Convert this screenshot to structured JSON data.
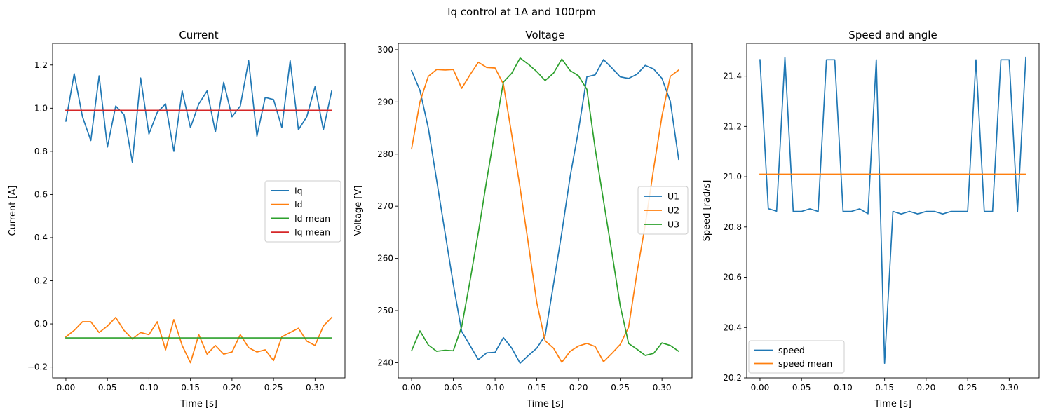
{
  "figure": {
    "suptitle": "Iq control at 1A and 100rpm"
  },
  "colors": {
    "c0": "#1f77b4",
    "c1": "#ff7f0e",
    "c2": "#2ca02c",
    "c3": "#d62728"
  },
  "chart_data": [
    {
      "type": "line",
      "title": "Current",
      "xlabel": "Time [s]",
      "ylabel": "Current [A]",
      "xlim": [
        -0.016,
        0.336
      ],
      "ylim": [
        -0.25,
        1.3
      ],
      "xticks": [
        0.0,
        0.05,
        0.1,
        0.15,
        0.2,
        0.25,
        0.3
      ],
      "xtick_labels": [
        "0.00",
        "0.05",
        "0.10",
        "0.15",
        "0.20",
        "0.25",
        "0.30"
      ],
      "yticks": [
        -0.2,
        0.0,
        0.2,
        0.4,
        0.6,
        0.8,
        1.0,
        1.2
      ],
      "ytick_labels": [
        "−0.2",
        "0.0",
        "0.2",
        "0.4",
        "0.6",
        "0.8",
        "1.0",
        "1.2"
      ],
      "legend_position": "center-right",
      "x": [
        0.0,
        0.01,
        0.02,
        0.03,
        0.04,
        0.05,
        0.06,
        0.07,
        0.08,
        0.09,
        0.1,
        0.11,
        0.12,
        0.13,
        0.14,
        0.15,
        0.16,
        0.17,
        0.18,
        0.19,
        0.2,
        0.21,
        0.22,
        0.23,
        0.24,
        0.25,
        0.26,
        0.27,
        0.28,
        0.29,
        0.3,
        0.31,
        0.32
      ],
      "series": [
        {
          "name": "Iq",
          "color": "#1f77b4",
          "values": [
            0.94,
            1.16,
            0.96,
            0.85,
            1.15,
            0.82,
            1.01,
            0.97,
            0.75,
            1.14,
            0.88,
            0.98,
            1.02,
            0.8,
            1.08,
            0.91,
            1.02,
            1.08,
            0.89,
            1.12,
            0.96,
            1.01,
            1.22,
            0.87,
            1.05,
            1.04,
            0.91,
            1.22,
            0.9,
            0.96,
            1.1,
            0.9,
            1.08
          ]
        },
        {
          "name": "Id",
          "color": "#ff7f0e",
          "values": [
            -0.06,
            -0.03,
            0.01,
            0.01,
            -0.04,
            -0.01,
            0.03,
            -0.03,
            -0.07,
            -0.04,
            -0.05,
            0.01,
            -0.12,
            0.02,
            -0.1,
            -0.18,
            -0.05,
            -0.14,
            -0.1,
            -0.14,
            -0.13,
            -0.05,
            -0.11,
            -0.13,
            -0.12,
            -0.17,
            -0.06,
            -0.04,
            -0.02,
            -0.08,
            -0.1,
            -0.01,
            0.03
          ]
        },
        {
          "name": "Id mean",
          "color": "#2ca02c",
          "values": [
            -0.065,
            -0.065
          ],
          "x": [
            0.0,
            0.32
          ]
        },
        {
          "name": "Iq mean",
          "color": "#d62728",
          "values": [
            0.99,
            0.99
          ],
          "x": [
            0.0,
            0.32
          ]
        }
      ]
    },
    {
      "type": "line",
      "title": "Voltage",
      "xlabel": "Time [s]",
      "ylabel": "Voltage [V]",
      "xlim": [
        -0.016,
        0.336
      ],
      "ylim": [
        237.1,
        301.2
      ],
      "xticks": [
        0.0,
        0.05,
        0.1,
        0.15,
        0.2,
        0.25,
        0.3
      ],
      "xtick_labels": [
        "0.00",
        "0.05",
        "0.10",
        "0.15",
        "0.20",
        "0.25",
        "0.30"
      ],
      "yticks": [
        240,
        250,
        260,
        270,
        280,
        290,
        300
      ],
      "ytick_labels": [
        "240",
        "250",
        "260",
        "270",
        "280",
        "290",
        "300"
      ],
      "legend_position": "center-right",
      "x": [
        0.0,
        0.01,
        0.02,
        0.03,
        0.04,
        0.05,
        0.06,
        0.07,
        0.08,
        0.09,
        0.1,
        0.11,
        0.12,
        0.13,
        0.14,
        0.15,
        0.16,
        0.17,
        0.18,
        0.19,
        0.2,
        0.21,
        0.22,
        0.23,
        0.24,
        0.25,
        0.26,
        0.27,
        0.28,
        0.29,
        0.3,
        0.31,
        0.32
      ],
      "series": [
        {
          "name": "U1",
          "color": "#1f77b4",
          "values": [
            296.0,
            292.2,
            285.0,
            275.0,
            265.0,
            255.0,
            246.0,
            243.3,
            240.6,
            241.9,
            242.0,
            244.8,
            242.8,
            239.9,
            241.4,
            242.8,
            245.2,
            255.0,
            265.0,
            275.7,
            284.6,
            294.8,
            295.2,
            298.1,
            296.5,
            294.8,
            294.5,
            295.3,
            297.0,
            296.3,
            294.5,
            290.1,
            279.0
          ]
        },
        {
          "name": "U2",
          "color": "#ff7f0e",
          "values": [
            281.0,
            290.0,
            294.9,
            296.2,
            296.1,
            296.2,
            292.6,
            295.2,
            297.6,
            296.6,
            296.5,
            293.4,
            283.7,
            273.5,
            262.7,
            251.5,
            244.2,
            242.8,
            240.1,
            242.2,
            243.2,
            243.7,
            243.1,
            240.2,
            241.8,
            243.5,
            246.8,
            257.2,
            266.5,
            277.2,
            287.3,
            294.9,
            296.1
          ]
        },
        {
          "name": "U3",
          "color": "#2ca02c",
          "values": [
            242.3,
            246.1,
            243.4,
            242.2,
            242.4,
            242.3,
            246.9,
            255.7,
            265.0,
            275.0,
            284.5,
            293.8,
            295.5,
            298.4,
            297.2,
            295.8,
            294.1,
            295.5,
            298.2,
            296.0,
            295.0,
            292.4,
            281.0,
            271.0,
            261.1,
            250.9,
            243.7,
            242.6,
            241.4,
            241.8,
            243.8,
            243.3,
            242.2
          ]
        }
      ]
    },
    {
      "type": "line",
      "title": "Speed and angle",
      "xlabel": "Time [s]",
      "ylabel": "Speed [rad/s]",
      "xlim": [
        -0.016,
        0.336
      ],
      "ylim": [
        20.2,
        21.53
      ],
      "xticks": [
        0.0,
        0.05,
        0.1,
        0.15,
        0.2,
        0.25,
        0.3
      ],
      "xtick_labels": [
        "0.00",
        "0.05",
        "0.10",
        "0.15",
        "0.20",
        "0.25",
        "0.30"
      ],
      "yticks": [
        20.2,
        20.4,
        20.6,
        20.8,
        21.0,
        21.2,
        21.4
      ],
      "ytick_labels": [
        "20.2",
        "20.4",
        "20.6",
        "20.8",
        "21.0",
        "21.2",
        "21.4"
      ],
      "legend_position": "lower-left",
      "x": [
        0.0,
        0.01,
        0.02,
        0.03,
        0.04,
        0.05,
        0.06,
        0.07,
        0.08,
        0.09,
        0.1,
        0.11,
        0.12,
        0.13,
        0.14,
        0.15,
        0.16,
        0.17,
        0.18,
        0.19,
        0.2,
        0.21,
        0.22,
        0.23,
        0.24,
        0.25,
        0.26,
        0.27,
        0.28,
        0.29,
        0.3,
        0.31,
        0.32
      ],
      "series": [
        {
          "name": "speed",
          "color": "#1f77b4",
          "values": [
            21.465,
            20.873,
            20.863,
            21.475,
            20.862,
            20.862,
            20.872,
            20.862,
            21.465,
            21.465,
            20.862,
            20.862,
            20.872,
            20.853,
            21.465,
            20.258,
            20.862,
            20.852,
            20.862,
            20.852,
            20.862,
            20.862,
            20.852,
            20.862,
            20.862,
            20.862,
            21.465,
            20.862,
            20.862,
            21.465,
            21.465,
            20.862,
            21.475
          ]
        },
        {
          "name": "speed mean",
          "color": "#ff7f0e",
          "values": [
            21.01,
            21.01
          ],
          "x": [
            0.0,
            0.32
          ]
        }
      ]
    }
  ]
}
